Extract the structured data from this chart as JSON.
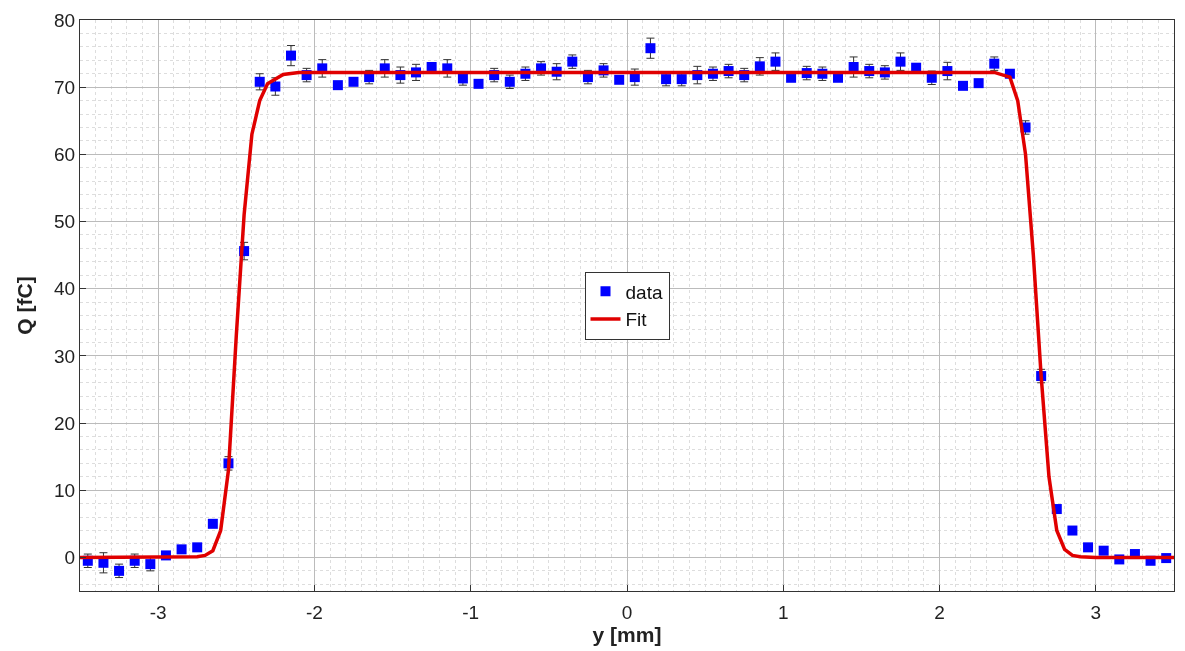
{
  "chart_data": {
    "type": "scatter",
    "xlabel": "y [mm]",
    "ylabel": "Q [fC]",
    "xlim": [
      -3.5,
      3.5
    ],
    "ylim": [
      -5,
      80
    ],
    "xticks": [
      -3,
      -2,
      -1,
      0,
      1,
      2,
      3
    ],
    "yticks": [
      0,
      10,
      20,
      30,
      40,
      50,
      60,
      70,
      80
    ],
    "grid": true,
    "legend": "center",
    "marker": "square",
    "series": [
      {
        "name": "data",
        "color": "#0000ff",
        "x": [
          -3.45,
          -3.35,
          -3.25,
          -3.15,
          -3.05,
          -2.95,
          -2.85,
          -2.75,
          -2.65,
          -2.55,
          -2.45,
          -2.35,
          -2.25,
          -2.15,
          -2.05,
          -1.95,
          -1.85,
          -1.75,
          -1.65,
          -1.55,
          -1.45,
          -1.35,
          -1.25,
          -1.15,
          -1.05,
          -0.95,
          -0.85,
          -0.75,
          -0.65,
          -0.55,
          -0.45,
          -0.35,
          -0.25,
          -0.15,
          -0.05,
          0.05,
          0.15,
          0.25,
          0.35,
          0.45,
          0.55,
          0.65,
          0.75,
          0.85,
          0.95,
          1.05,
          1.15,
          1.25,
          1.35,
          1.45,
          1.55,
          1.65,
          1.75,
          1.85,
          1.95,
          2.05,
          2.15,
          2.25,
          2.35,
          2.45,
          2.55,
          2.65,
          2.75,
          2.85,
          2.95,
          3.05,
          3.15,
          3.25,
          3.35,
          3.45
        ],
        "values": [
          -0.5,
          -0.8,
          -2,
          -0.5,
          -1,
          0.3,
          1.2,
          1.5,
          5,
          14,
          45.6,
          70.8,
          70.1,
          74.7,
          71.8,
          72.8,
          70.3,
          70.8,
          71.5,
          72.8,
          71.8,
          72.2,
          73,
          72.8,
          71.3,
          70.5,
          71.8,
          70.8,
          72,
          72.8,
          72.3,
          73.8,
          71.5,
          72.5,
          71.1,
          71.5,
          75.8,
          71.2,
          71.2,
          71.8,
          72,
          72.4,
          71.8,
          73.1,
          73.8,
          71.4,
          72.1,
          72,
          71.4,
          73,
          72.4,
          72.2,
          73.8,
          72.9,
          71.4,
          72.4,
          70.2,
          70.6,
          73.5,
          72,
          64,
          27,
          7.2,
          4,
          1.5,
          1,
          -0.3,
          0.5,
          -0.5,
          -0.1
        ],
        "errors": [
          1,
          1.5,
          1,
          1,
          1,
          null,
          null,
          null,
          null,
          1,
          1.3,
          1.2,
          1.3,
          1.5,
          1,
          1.3,
          null,
          null,
          1,
          1.3,
          1.2,
          1.2,
          null,
          1.3,
          1,
          null,
          1,
          1,
          1,
          1,
          1.2,
          1,
          1,
          1,
          null,
          1.2,
          1.5,
          1,
          1,
          1.3,
          1,
          1,
          1,
          1.3,
          1.3,
          null,
          1,
          1,
          null,
          1.5,
          1,
          1,
          1.3,
          null,
          1,
          1.3,
          null,
          null,
          1,
          null,
          1,
          1,
          null,
          null,
          0.3,
          0.3,
          0.3,
          0.3,
          0.3,
          0.3
        ]
      },
      {
        "name": "Fit",
        "type": "line",
        "color": "#e00000",
        "line_style": "solid",
        "marker": "none",
        "x": [
          -3.5,
          -2.75,
          -2.7,
          -2.65,
          -2.6,
          -2.55,
          -2.5,
          -2.45,
          -2.4,
          -2.35,
          -2.3,
          -2.2,
          -2.1,
          2.35,
          2.45,
          2.5,
          2.55,
          2.6,
          2.65,
          2.7,
          2.75,
          2.8,
          2.85,
          2.9,
          3.0,
          3.5
        ],
        "values": [
          0,
          0.1,
          0.3,
          1,
          4,
          13,
          33,
          51,
          63,
          68,
          70.5,
          71.9,
          72.2,
          72.2,
          71.5,
          68,
          60,
          45,
          27,
          12,
          4,
          1.2,
          0.3,
          0.1,
          0,
          0
        ]
      }
    ]
  }
}
